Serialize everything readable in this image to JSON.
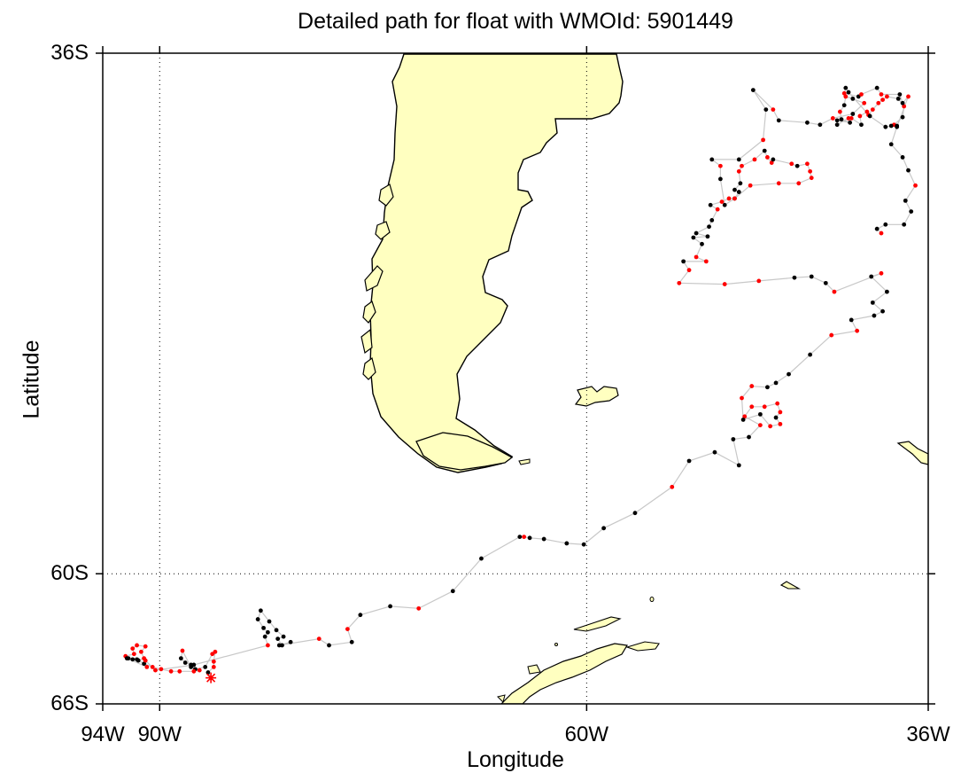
{
  "title": "Detailed path for float with WMOId: 5901449",
  "xlabel": "Longitude",
  "ylabel": "Latitude",
  "colors": {
    "land": "#ffffc0",
    "coast": "#000000",
    "track": "#c8c8c8",
    "point_black": "#000000",
    "point_red": "#ff0000",
    "grid": "#000000"
  },
  "map": {
    "projection": "equirectangular",
    "lon_range": [
      -94,
      -36
    ],
    "lat_range": [
      -66,
      -36
    ],
    "grid": "dotted",
    "xticks": [
      {
        "lon": -94,
        "label": "94W"
      },
      {
        "lon": -90,
        "label": "90W"
      },
      {
        "lon": -60,
        "label": "60W"
      },
      {
        "lon": -36,
        "label": "36W"
      }
    ],
    "yticks": [
      {
        "lat": -36,
        "label": "36S"
      },
      {
        "lat": -60,
        "label": "60S"
      },
      {
        "lat": -66,
        "label": "66S"
      }
    ],
    "gridlines": {
      "lon": [
        -90,
        -60
      ],
      "lat": [
        -60
      ]
    },
    "last_position_marker": "asterisk"
  },
  "track": {
    "last_position": [
      -86.4,
      -64.8
    ],
    "points": [
      [
        -86.4,
        -64.8,
        "r"
      ],
      [
        -86.6,
        -64.55,
        "k"
      ],
      [
        -86.2,
        -64.3,
        "r"
      ],
      [
        -86.2,
        -64.05,
        "r"
      ],
      [
        -86.1,
        -63.6,
        "r"
      ],
      [
        -86.3,
        -63.7,
        "r"
      ],
      [
        -86.8,
        -64.3,
        "k"
      ],
      [
        -87.5,
        -64.4,
        "k"
      ],
      [
        -87.8,
        -64.2,
        "k"
      ],
      [
        -88.2,
        -64.1,
        "k"
      ],
      [
        -88.5,
        -63.9,
        "k"
      ],
      [
        -88.4,
        -63.55,
        "r"
      ],
      [
        -87.8,
        -64.3,
        "k"
      ],
      [
        -87.2,
        -64.45,
        "r"
      ],
      [
        -87.6,
        -64.5,
        "r"
      ],
      [
        -88.6,
        -64.5,
        "r"
      ],
      [
        -89.2,
        -64.5,
        "r"
      ],
      [
        -89.9,
        -64.4,
        "r"
      ],
      [
        -90.5,
        -64.3,
        "r"
      ],
      [
        -91.1,
        -64.15,
        "k"
      ],
      [
        -91.6,
        -63.95,
        "k"
      ],
      [
        -92.2,
        -63.9,
        "k"
      ],
      [
        -92.4,
        -63.8,
        "r"
      ],
      [
        -91.8,
        -63.7,
        "r"
      ],
      [
        -91.9,
        -63.45,
        "r"
      ],
      [
        -91.6,
        -63.3,
        "r"
      ],
      [
        -91.0,
        -63.35,
        "r"
      ],
      [
        -91.3,
        -63.6,
        "r"
      ],
      [
        -91.1,
        -63.9,
        "r"
      ],
      [
        -91.5,
        -64.0,
        "k"
      ],
      [
        -91.9,
        -63.95,
        "k"
      ],
      [
        -92.3,
        -63.9,
        "k"
      ],
      [
        -90.9,
        -64.3,
        "r"
      ],
      [
        -91.0,
        -64.0,
        "r"
      ],
      [
        -90.3,
        -64.45,
        "r"
      ],
      [
        -87.6,
        -64.2,
        "k"
      ],
      [
        -82.4,
        -63.3,
        "r"
      ],
      [
        -82.6,
        -62.9,
        "k"
      ],
      [
        -82.4,
        -62.7,
        "k"
      ],
      [
        -82.7,
        -62.5,
        "k"
      ],
      [
        -83.1,
        -62.1,
        "k"
      ],
      [
        -82.9,
        -61.7,
        "k"
      ],
      [
        -82.3,
        -62.2,
        "k"
      ],
      [
        -81.8,
        -62.6,
        "k"
      ],
      [
        -81.3,
        -62.9,
        "k"
      ],
      [
        -81.7,
        -63.0,
        "k"
      ],
      [
        -81.4,
        -63.3,
        "k"
      ],
      [
        -80.8,
        -63.15,
        "k"
      ],
      [
        -81.6,
        -63.3,
        "k"
      ],
      [
        -78.8,
        -63.0,
        "r"
      ],
      [
        -78.1,
        -63.3,
        "k"
      ],
      [
        -76.5,
        -63.15,
        "k"
      ],
      [
        -76.8,
        -62.55,
        "r"
      ],
      [
        -75.9,
        -61.9,
        "k"
      ],
      [
        -73.8,
        -61.5,
        "k"
      ],
      [
        -71.8,
        -61.6,
        "r"
      ],
      [
        -69.4,
        -60.8,
        "k"
      ],
      [
        -67.4,
        -59.3,
        "k"
      ],
      [
        -64.7,
        -58.3,
        "k"
      ],
      [
        -64.4,
        -58.3,
        "r"
      ],
      [
        -64.0,
        -58.35,
        "k"
      ],
      [
        -63.0,
        -58.4,
        "k"
      ],
      [
        -61.4,
        -58.6,
        "k"
      ],
      [
        -60.2,
        -58.65,
        "k"
      ],
      [
        -58.8,
        -57.9,
        "k"
      ],
      [
        -56.6,
        -57.2,
        "k"
      ],
      [
        -54.0,
        -56.0,
        "r"
      ],
      [
        -52.8,
        -54.8,
        "k"
      ],
      [
        -51.0,
        -54.4,
        "k"
      ],
      [
        -49.3,
        -55.0,
        "k"
      ],
      [
        -49.7,
        -53.8,
        "k"
      ],
      [
        -48.6,
        -53.7,
        "k"
      ],
      [
        -47.8,
        -53.15,
        "r"
      ],
      [
        -48.9,
        -52.75,
        "r"
      ],
      [
        -48.4,
        -52.3,
        "r"
      ],
      [
        -47.5,
        -52.3,
        "r"
      ],
      [
        -46.6,
        -52.15,
        "r"
      ],
      [
        -46.4,
        -52.55,
        "r"
      ],
      [
        -46.7,
        -52.8,
        "k"
      ],
      [
        -46.4,
        -53.1,
        "r"
      ],
      [
        -47.1,
        -53.2,
        "r"
      ],
      [
        -47.8,
        -52.65,
        "k"
      ],
      [
        -49.0,
        -52.9,
        "k"
      ],
      [
        -49.1,
        -51.9,
        "r"
      ],
      [
        -48.4,
        -51.35,
        "r"
      ],
      [
        -47.3,
        -51.4,
        "k"
      ],
      [
        -46.7,
        -51.2,
        "k"
      ],
      [
        -45.8,
        -50.8,
        "k"
      ],
      [
        -44.3,
        -49.9,
        "k"
      ],
      [
        -42.8,
        -49.0,
        "r"
      ],
      [
        -41.0,
        -48.8,
        "r"
      ],
      [
        -41.4,
        -48.3,
        "k"
      ],
      [
        -39.8,
        -48.1,
        "k"
      ],
      [
        -39.2,
        -47.9,
        "k"
      ],
      [
        -39.9,
        -47.5,
        "k"
      ],
      [
        -38.9,
        -47.0,
        "k"
      ],
      [
        -40.0,
        -46.3,
        "k"
      ],
      [
        -39.3,
        -46.15,
        "r"
      ],
      [
        -42.6,
        -47.0,
        "r"
      ],
      [
        -43.2,
        -46.6,
        "k"
      ],
      [
        -44.2,
        -46.3,
        "k"
      ],
      [
        -45.4,
        -46.35,
        "k"
      ],
      [
        -47.9,
        -46.5,
        "r"
      ],
      [
        -50.3,
        -46.65,
        "r"
      ],
      [
        -53.5,
        -46.6,
        "r"
      ],
      [
        -52.8,
        -46.0,
        "r"
      ],
      [
        -53.2,
        -45.6,
        "k"
      ],
      [
        -51.6,
        -45.6,
        "r"
      ],
      [
        -52.3,
        -45.4,
        "r"
      ],
      [
        -51.9,
        -44.8,
        "k"
      ],
      [
        -52.5,
        -44.5,
        "k"
      ],
      [
        -51.5,
        -44.45,
        "k"
      ],
      [
        -52.3,
        -44.3,
        "k"
      ],
      [
        -51.4,
        -44.0,
        "k"
      ],
      [
        -51.2,
        -43.7,
        "k"
      ],
      [
        -50.8,
        -43.2,
        "r"
      ],
      [
        -51.3,
        -43.0,
        "k"
      ],
      [
        -50.5,
        -42.85,
        "r"
      ],
      [
        -50.0,
        -42.7,
        "r"
      ],
      [
        -49.6,
        -42.7,
        "k"
      ],
      [
        -49.3,
        -42.4,
        "k"
      ],
      [
        -49.6,
        -42.3,
        "k"
      ],
      [
        -49.2,
        -42.0,
        "k"
      ],
      [
        -49.3,
        -41.45,
        "r"
      ],
      [
        -49.1,
        -41.2,
        "r"
      ],
      [
        -48.2,
        -40.9,
        "r"
      ],
      [
        -47.5,
        -40.5,
        "k"
      ],
      [
        -47.3,
        -40.8,
        "r"
      ],
      [
        -47.0,
        -41.05,
        "r"
      ],
      [
        -46.9,
        -40.9,
        "k"
      ],
      [
        -45.6,
        -41.1,
        "r"
      ],
      [
        -45.2,
        -41.2,
        "k"
      ],
      [
        -44.5,
        -41.1,
        "r"
      ],
      [
        -44.3,
        -41.45,
        "r"
      ],
      [
        -44.2,
        -41.75,
        "r"
      ],
      [
        -45.1,
        -42.0,
        "r"
      ],
      [
        -46.5,
        -42.0,
        "r"
      ],
      [
        -48.5,
        -42.1,
        "r"
      ],
      [
        -49.6,
        -42.7,
        "r"
      ],
      [
        -50.3,
        -43.0,
        "k"
      ],
      [
        -50.6,
        -41.8,
        "k"
      ],
      [
        -50.6,
        -41.2,
        "r"
      ],
      [
        -51.2,
        -40.9,
        "k"
      ],
      [
        -49.3,
        -40.9,
        "k"
      ],
      [
        -47.6,
        -40.0,
        "r"
      ],
      [
        -47.4,
        -38.6,
        "k"
      ],
      [
        -48.3,
        -37.7,
        "k"
      ],
      [
        -46.9,
        -38.6,
        "r"
      ],
      [
        -46.5,
        -39.1,
        "k"
      ],
      [
        -44.5,
        -39.2,
        "k"
      ],
      [
        -43.6,
        -39.3,
        "k"
      ],
      [
        -42.7,
        -39.0,
        "r"
      ],
      [
        -41.3,
        -38.8,
        "k"
      ],
      [
        -40.5,
        -38.3,
        "r"
      ],
      [
        -41.3,
        -38.1,
        "k"
      ],
      [
        -41.8,
        -38.0,
        "r"
      ],
      [
        -41.9,
        -38.4,
        "k"
      ],
      [
        -42.2,
        -38.7,
        "r"
      ],
      [
        -42.1,
        -39.05,
        "k"
      ],
      [
        -41.5,
        -39.2,
        "k"
      ],
      [
        -42.4,
        -39.1,
        "k"
      ],
      [
        -42.4,
        -39.3,
        "k"
      ],
      [
        -41.6,
        -39.0,
        "r"
      ],
      [
        -41.4,
        -39.0,
        "r"
      ],
      [
        -40.7,
        -39.3,
        "k"
      ],
      [
        -40.8,
        -38.9,
        "r"
      ],
      [
        -40.3,
        -38.7,
        "r"
      ],
      [
        -40.2,
        -38.85,
        "r"
      ],
      [
        -39.9,
        -38.6,
        "r"
      ],
      [
        -39.5,
        -38.3,
        "r"
      ],
      [
        -39.2,
        -38.15,
        "r"
      ],
      [
        -38.9,
        -38.0,
        "r"
      ],
      [
        -38.1,
        -38.1,
        "k"
      ],
      [
        -37.7,
        -38.45,
        "r"
      ],
      [
        -37.8,
        -38.95,
        "k"
      ],
      [
        -38.4,
        -39.3,
        "r"
      ],
      [
        -38.2,
        -39.35,
        "k"
      ],
      [
        -38.6,
        -39.35,
        "k"
      ],
      [
        -39.0,
        -39.4,
        "k"
      ],
      [
        -40.1,
        -38.9,
        "k"
      ],
      [
        -41.6,
        -37.8,
        "k"
      ],
      [
        -41.8,
        -37.6,
        "k"
      ],
      [
        -41.9,
        -37.85,
        "r"
      ],
      [
        -40.9,
        -38.0,
        "k"
      ],
      [
        -40.7,
        -37.9,
        "r"
      ],
      [
        -39.6,
        -37.6,
        "k"
      ],
      [
        -39.3,
        -37.9,
        "r"
      ],
      [
        -38.0,
        -37.9,
        "k"
      ],
      [
        -37.8,
        -38.3,
        "k"
      ],
      [
        -37.4,
        -38.0,
        "r"
      ],
      [
        -38.2,
        -39.4,
        "k"
      ],
      [
        -38.6,
        -40.2,
        "k"
      ],
      [
        -37.8,
        -40.8,
        "k"
      ],
      [
        -37.4,
        -41.4,
        "k"
      ],
      [
        -36.9,
        -42.1,
        "r"
      ],
      [
        -37.6,
        -42.8,
        "k"
      ],
      [
        -37.2,
        -43.3,
        "k"
      ],
      [
        -37.7,
        -43.9,
        "k"
      ],
      [
        -39.0,
        -43.9,
        "k"
      ],
      [
        -39.6,
        -44.1,
        "k"
      ],
      [
        -39.3,
        -44.3,
        "r"
      ]
    ]
  }
}
